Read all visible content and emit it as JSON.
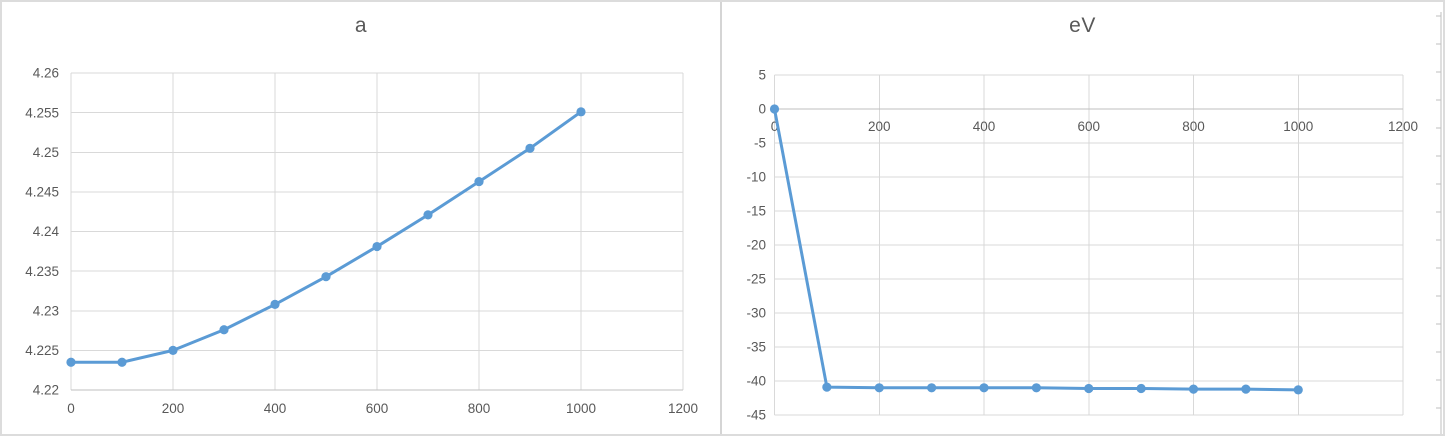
{
  "colors": {
    "series": "#5B9BD5",
    "gridline": "#D9D9D9",
    "axis_line": "#BFBFBF",
    "label": "#595959",
    "title": "#595959",
    "panel_border": "#DCDCDC"
  },
  "chart_data": [
    {
      "type": "line",
      "title": "a",
      "x": [
        0,
        100,
        200,
        300,
        400,
        500,
        600,
        700,
        800,
        900,
        1000
      ],
      "values": [
        4.2235,
        4.2235,
        4.225,
        4.2276,
        4.2308,
        4.2343,
        4.2381,
        4.2421,
        4.2463,
        4.2505,
        4.2551
      ],
      "xlabel": "",
      "ylabel": "",
      "xlim": [
        0,
        1200
      ],
      "ylim": [
        4.22,
        4.26
      ],
      "x_ticks": [
        0,
        200,
        400,
        600,
        800,
        1000,
        1200
      ],
      "x_tick_labels": [
        "0",
        "200",
        "400",
        "600",
        "800",
        "1000",
        "1200"
      ],
      "y_ticks": [
        4.22,
        4.225,
        4.23,
        4.235,
        4.24,
        4.245,
        4.25,
        4.255,
        4.26
      ],
      "y_tick_labels": [
        "4.22",
        "4.225",
        "4.23",
        "4.235",
        "4.24",
        "4.245",
        "4.25",
        "4.255",
        "4.26"
      ],
      "grid": true,
      "legend": false,
      "markers": true,
      "axis_cross_y": 4.22
    },
    {
      "type": "line",
      "title": "eV",
      "x": [
        0,
        100,
        200,
        300,
        400,
        500,
        600,
        700,
        800,
        900,
        1000
      ],
      "values": [
        0,
        -40.9,
        -41,
        -41,
        -41,
        -41,
        -41.1,
        -41.1,
        -41.2,
        -41.2,
        -41.3
      ],
      "xlabel": "",
      "ylabel": "",
      "xlim": [
        0,
        1200
      ],
      "ylim": [
        -45,
        5
      ],
      "x_ticks": [
        0,
        200,
        400,
        600,
        800,
        1000,
        1200
      ],
      "x_tick_labels": [
        "0",
        "200",
        "400",
        "600",
        "800",
        "1000",
        "1200"
      ],
      "y_ticks": [
        5,
        0,
        -5,
        -10,
        -15,
        -20,
        -25,
        -30,
        -35,
        -40,
        -45
      ],
      "y_tick_labels": [
        "5",
        "0",
        "-5",
        "-10",
        "-15",
        "-20",
        "-25",
        "-30",
        "-35",
        "-40",
        "-45"
      ],
      "grid": true,
      "legend": false,
      "markers": true,
      "axis_cross_y": 0
    }
  ]
}
